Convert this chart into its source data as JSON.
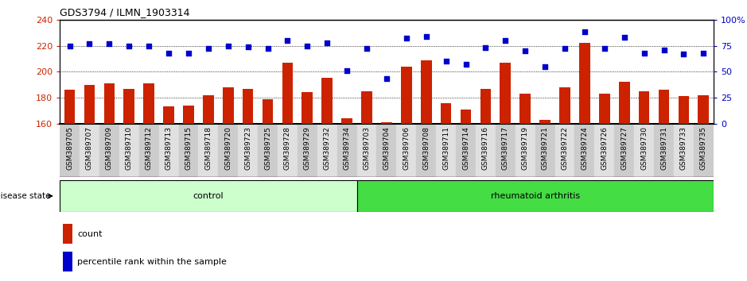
{
  "title": "GDS3794 / ILMN_1903314",
  "categories": [
    "GSM389705",
    "GSM389707",
    "GSM389709",
    "GSM389710",
    "GSM389712",
    "GSM389713",
    "GSM389715",
    "GSM389718",
    "GSM389720",
    "GSM389723",
    "GSM389725",
    "GSM389728",
    "GSM389729",
    "GSM389732",
    "GSM389734",
    "GSM389703",
    "GSM389704",
    "GSM389706",
    "GSM389708",
    "GSM389711",
    "GSM389714",
    "GSM389716",
    "GSM389717",
    "GSM389719",
    "GSM389721",
    "GSM389722",
    "GSM389724",
    "GSM389726",
    "GSM389727",
    "GSM389730",
    "GSM389731",
    "GSM389733",
    "GSM389735"
  ],
  "bar_values": [
    186,
    190,
    191,
    187,
    191,
    173,
    174,
    182,
    188,
    187,
    179,
    207,
    184,
    195,
    164,
    185,
    161,
    204,
    209,
    176,
    171,
    187,
    207,
    183,
    163,
    188,
    222,
    183,
    192,
    185,
    186,
    181,
    182
  ],
  "dot_values_pct": [
    75,
    77,
    77,
    75,
    75,
    68,
    68,
    72,
    75,
    74,
    72,
    80,
    75,
    78,
    51,
    72,
    43,
    82,
    84,
    60,
    57,
    73,
    80,
    70,
    55,
    72,
    88,
    72,
    83,
    68,
    71,
    67,
    68
  ],
  "control_count": 15,
  "ylim_left": [
    160,
    240
  ],
  "ylim_right": [
    0,
    100
  ],
  "yticks_left": [
    160,
    180,
    200,
    220,
    240
  ],
  "yticks_right": [
    0,
    25,
    50,
    75,
    100
  ],
  "bar_color": "#cc2200",
  "dot_color": "#0000cc",
  "control_color": "#ccffcc",
  "ra_color": "#44dd44",
  "col_even": "#cccccc",
  "col_odd": "#e0e0e0"
}
